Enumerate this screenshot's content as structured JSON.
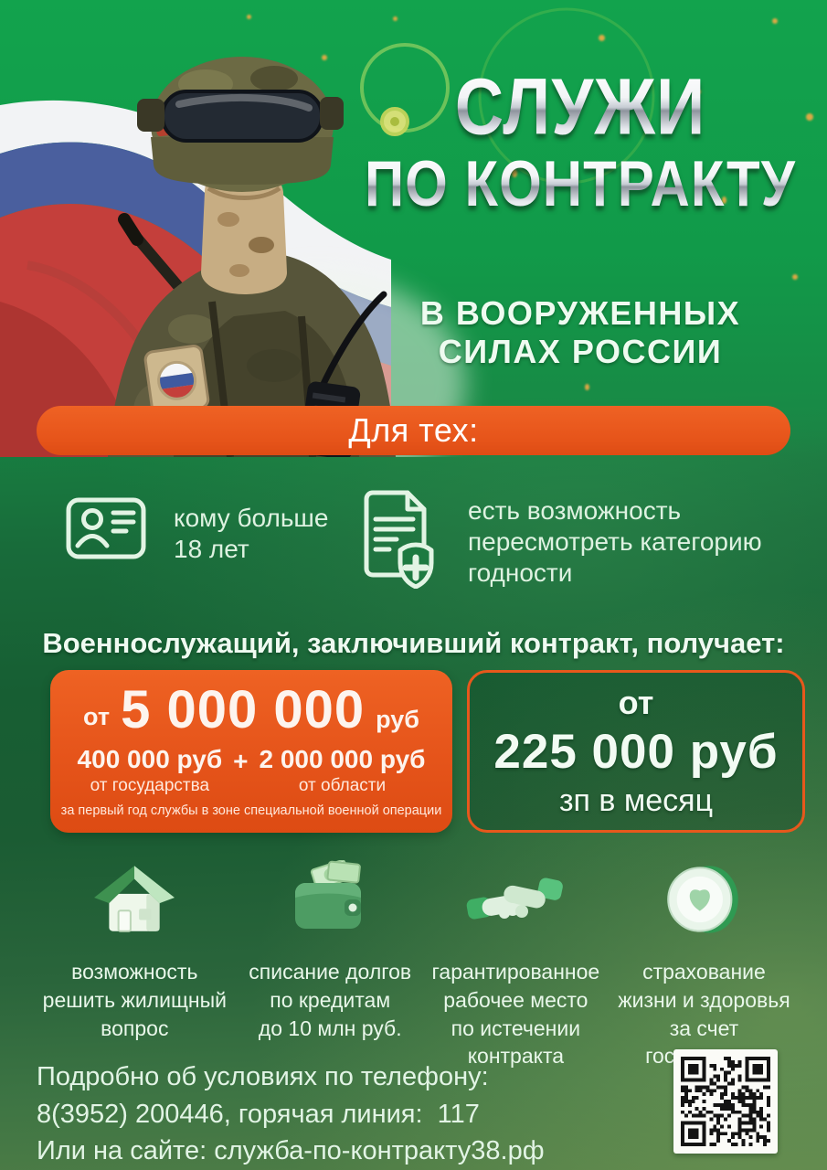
{
  "colors": {
    "accent_orange": "#e7581c",
    "bright_green_top": "#14a04c",
    "dark_green": "#175e33",
    "light_text": "#e9f7ea",
    "metallic_title": "#d9dde3"
  },
  "title": {
    "line1": "СЛУЖИ",
    "line2": "ПО КОНТРАКТУ"
  },
  "subtitle": {
    "line1": "В ВООРУЖЕННЫХ",
    "line2": "СИЛАХ РОССИИ"
  },
  "for_banner": {
    "label": "Для тех:"
  },
  "criteria": {
    "item1": {
      "icon": "id-card-icon",
      "lines": [
        "кому больше",
        "18 лет"
      ]
    },
    "item2": {
      "icon": "medical-fitness-document-icon",
      "lines": [
        "есть возможность",
        "пересмотреть категорию",
        "годности"
      ]
    }
  },
  "benefits_header": "Военнослужащий, заключивший контракт, получает:",
  "payment_left": {
    "prefix": "от",
    "amount": "5 000 000",
    "currency": "руб",
    "part1_amount": "400 000 руб",
    "plus": "+",
    "part2_amount": "2 000 000 руб",
    "part1_label": "от государства",
    "part2_label": "от области",
    "note": "за первый год службы в зоне специальной военной операции"
  },
  "payment_right": {
    "prefix": "от",
    "amount": "225 000 руб",
    "caption": "зп в месяц"
  },
  "benefits": [
    {
      "icon": "house-icon",
      "lines": [
        "возможность",
        "решить жилищный",
        "вопрос"
      ]
    },
    {
      "icon": "wallet-money-icon",
      "lines": [
        "списание долгов",
        "по кредитам",
        "до 10 млн руб."
      ]
    },
    {
      "icon": "handshake-icon",
      "lines": [
        "гарантированное",
        "рабочее место",
        "по истечении",
        "контракта"
      ]
    },
    {
      "icon": "coin-heart-icon",
      "lines": [
        "страхование",
        "жизни и здоровья",
        "за счет",
        "государства"
      ]
    }
  ],
  "footer": {
    "line1": "Подробно об условиях по телефону:",
    "line2": "8(3952) 200446, горячая линия:  117",
    "line3": "Или на сайте: служба-по-контракту38.рф",
    "qr": "qr-code"
  }
}
